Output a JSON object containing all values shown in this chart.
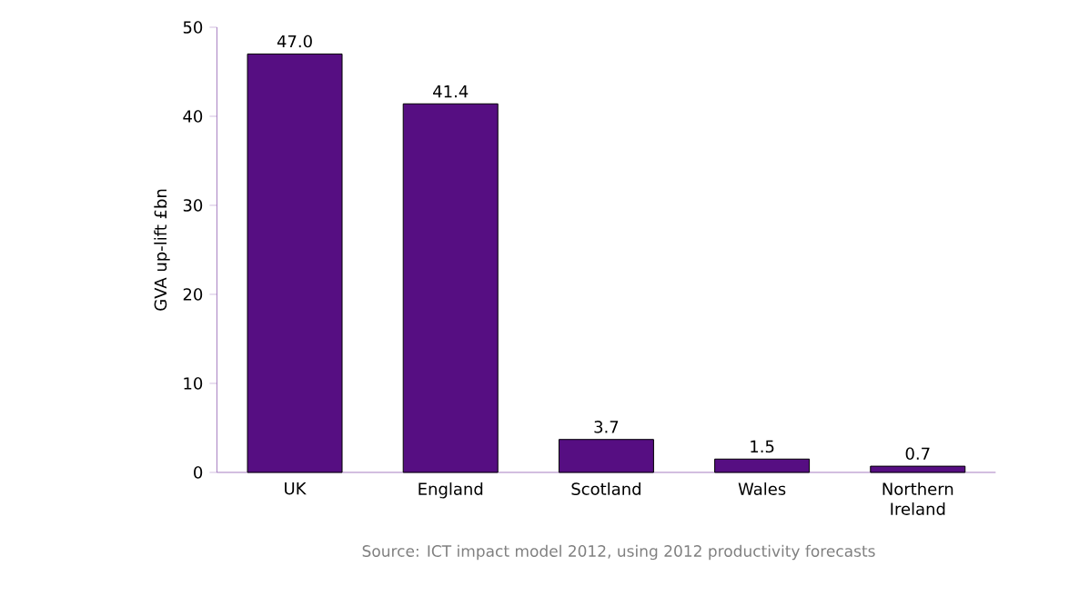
{
  "chart_data": {
    "type": "bar",
    "categories": [
      "UK",
      "England",
      "Scotland",
      "Wales",
      "Northern Ireland"
    ],
    "values": [
      47.0,
      41.4,
      3.7,
      1.5,
      0.7
    ],
    "value_labels": [
      "47.0",
      "41.4",
      "3.7",
      "1.5",
      "0.7"
    ],
    "color": "#560e82",
    "ylabel": "GVA up-lift £bn",
    "ylim": [
      0,
      50
    ],
    "yticks": [
      0,
      10,
      20,
      30,
      40,
      50
    ],
    "annotations": [
      "Source:  ICT impact model 2012, using 2012 productivity forecasts"
    ]
  }
}
